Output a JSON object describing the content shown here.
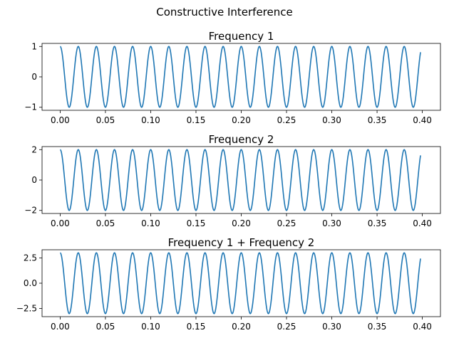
{
  "figure": {
    "suptitle": "Constructive Interference",
    "line_color": "#1f77b4"
  },
  "chart_data": [
    {
      "type": "line",
      "title": "Frequency 1",
      "xlabel": "",
      "ylabel": "",
      "series": [
        {
          "name": "Frequency 1",
          "amplitude": 1,
          "frequency_hz": 50,
          "phase": "cosine",
          "x_start": 0.0,
          "x_end": 0.398
        }
      ],
      "xlim": [
        -0.02,
        0.42
      ],
      "ylim": [
        -1.1,
        1.1
      ],
      "xticks": [
        0.0,
        0.05,
        0.1,
        0.15,
        0.2,
        0.25,
        0.3,
        0.35,
        0.4
      ],
      "xtick_labels": [
        "0.00",
        "0.05",
        "0.10",
        "0.15",
        "0.20",
        "0.25",
        "0.30",
        "0.35",
        "0.40"
      ],
      "yticks": [
        -1,
        0,
        1
      ],
      "ytick_labels": [
        "−1",
        "0",
        "1"
      ],
      "grid": false
    },
    {
      "type": "line",
      "title": "Frequency 2",
      "xlabel": "",
      "ylabel": "",
      "series": [
        {
          "name": "Frequency 2",
          "amplitude": 2,
          "frequency_hz": 50,
          "phase": "cosine",
          "x_start": 0.0,
          "x_end": 0.398
        }
      ],
      "xlim": [
        -0.02,
        0.42
      ],
      "ylim": [
        -2.2,
        2.2
      ],
      "xticks": [
        0.0,
        0.05,
        0.1,
        0.15,
        0.2,
        0.25,
        0.3,
        0.35,
        0.4
      ],
      "xtick_labels": [
        "0.00",
        "0.05",
        "0.10",
        "0.15",
        "0.20",
        "0.25",
        "0.30",
        "0.35",
        "0.40"
      ],
      "yticks": [
        -2,
        0,
        2
      ],
      "ytick_labels": [
        "−2",
        "0",
        "2"
      ],
      "grid": false
    },
    {
      "type": "line",
      "title": "Frequency 1 + Frequency 2",
      "xlabel": "",
      "ylabel": "",
      "series": [
        {
          "name": "Frequency 1 + Frequency 2",
          "amplitude": 3,
          "frequency_hz": 50,
          "phase": "cosine",
          "x_start": 0.0,
          "x_end": 0.398
        }
      ],
      "xlim": [
        -0.02,
        0.42
      ],
      "ylim": [
        -3.3,
        3.3
      ],
      "xticks": [
        0.0,
        0.05,
        0.1,
        0.15,
        0.2,
        0.25,
        0.3,
        0.35,
        0.4
      ],
      "xtick_labels": [
        "0.00",
        "0.05",
        "0.10",
        "0.15",
        "0.20",
        "0.25",
        "0.30",
        "0.35",
        "0.40"
      ],
      "yticks": [
        -2.5,
        0,
        2.5
      ],
      "ytick_labels": [
        "−2.5",
        "0.0",
        "2.5"
      ],
      "grid": false
    }
  ]
}
